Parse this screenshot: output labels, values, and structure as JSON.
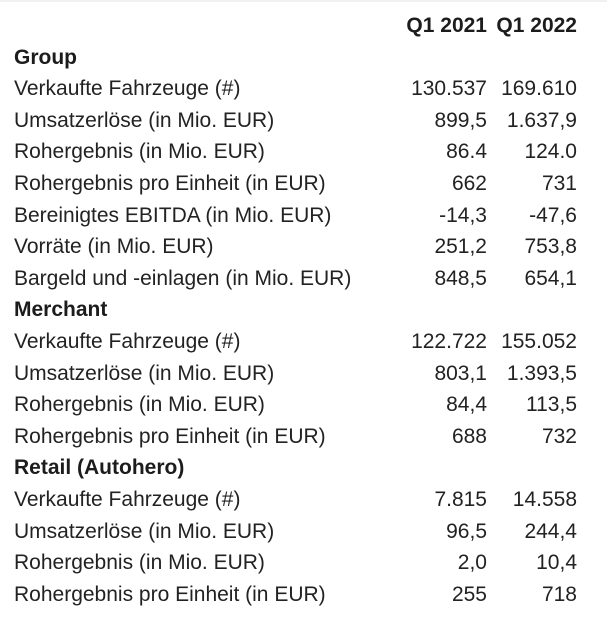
{
  "accent_colors": {
    "text": "#222222",
    "bold_text": "#1c1c1c",
    "top_border": "#f1f1f1",
    "background": "#ffffff"
  },
  "chart_data": {
    "type": "table",
    "title": "",
    "columns": [
      "",
      "Q1 2021",
      "Q1 2022"
    ],
    "sections": [
      {
        "title": "Group",
        "rows": [
          {
            "label": "Verkaufte Fahrzeuge (#)",
            "v1": "130.537",
            "v2": "169.610",
            "v1_num": 130537,
            "v2_num": 169610
          },
          {
            "label": "Umsatzerlöse (in Mio. EUR)",
            "v1": "899,5",
            "v2": "1.637,9",
            "v1_num": 899.5,
            "v2_num": 1637.9
          },
          {
            "label": "Rohergebnis (in Mio. EUR)",
            "v1": "86.4",
            "v2": "124.0",
            "v1_num": 86.4,
            "v2_num": 124.0
          },
          {
            "label": "Rohergebnis pro Einheit (in EUR)",
            "v1": "662",
            "v2": "731",
            "v1_num": 662,
            "v2_num": 731
          },
          {
            "label": "Bereinigtes EBITDA (in Mio. EUR)",
            "v1": "-14,3",
            "v2": "-47,6",
            "v1_num": -14.3,
            "v2_num": -47.6
          },
          {
            "label": "Vorräte (in Mio. EUR)",
            "v1": "251,2",
            "v2": "753,8",
            "v1_num": 251.2,
            "v2_num": 753.8
          },
          {
            "label": "Bargeld und -einlagen (in Mio. EUR)",
            "v1": "848,5",
            "v2": "654,1",
            "v1_num": 848.5,
            "v2_num": 654.1
          }
        ]
      },
      {
        "title": "Merchant",
        "rows": [
          {
            "label": "Verkaufte Fahrzeuge (#)",
            "v1": "122.722",
            "v2": "155.052",
            "v1_num": 122722,
            "v2_num": 155052
          },
          {
            "label": "Umsatzerlöse (in Mio. EUR)",
            "v1": "803,1",
            "v2": "1.393,5",
            "v1_num": 803.1,
            "v2_num": 1393.5
          },
          {
            "label": "Rohergebnis (in Mio. EUR)",
            "v1": "84,4",
            "v2": "113,5",
            "v1_num": 84.4,
            "v2_num": 113.5
          },
          {
            "label": "Rohergebnis pro Einheit (in EUR)",
            "v1": "688",
            "v2": "732",
            "v1_num": 688,
            "v2_num": 732
          }
        ]
      },
      {
        "title": "Retail (Autohero)",
        "rows": [
          {
            "label": "Verkaufte Fahrzeuge (#)",
            "v1": "7.815",
            "v2": "14.558",
            "v1_num": 7815,
            "v2_num": 14558
          },
          {
            "label": "Umsatzerlöse (in Mio. EUR)",
            "v1": "96,5",
            "v2": "244,4",
            "v1_num": 96.5,
            "v2_num": 244.4
          },
          {
            "label": "Rohergebnis (in Mio. EUR)",
            "v1": "2,0",
            "v2": "10,4",
            "v1_num": 2.0,
            "v2_num": 10.4
          },
          {
            "label": "Rohergebnis pro Einheit (in EUR)",
            "v1": "255",
            "v2": "718",
            "v1_num": 255,
            "v2_num": 718
          }
        ]
      }
    ]
  }
}
